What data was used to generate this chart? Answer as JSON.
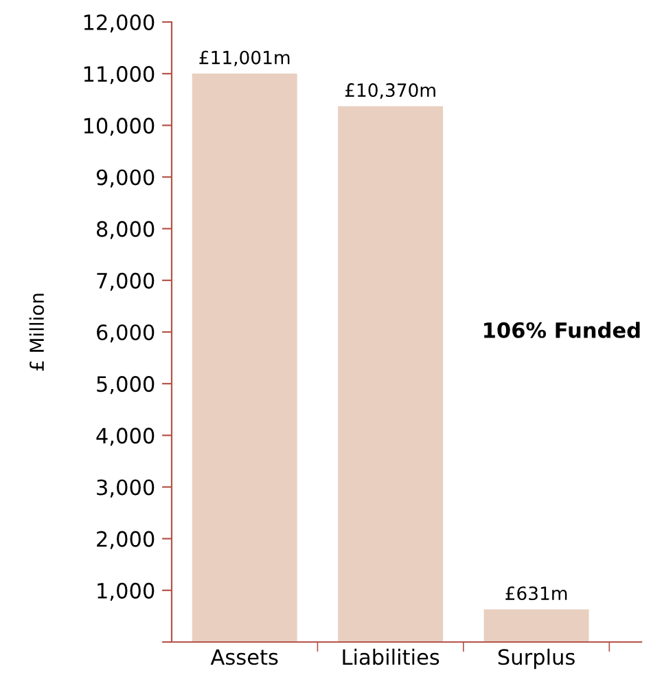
{
  "chart_data": {
    "type": "bar",
    "ylabel": "£ Million",
    "categories": [
      "Assets",
      "Liabilities",
      "Surplus"
    ],
    "values": [
      11001,
      10370,
      631
    ],
    "value_labels": [
      "£11,001m",
      "£10,370m",
      "£631m"
    ],
    "color": "#e8cfc0",
    "ylim": [
      0,
      12000
    ],
    "yticks": [
      {
        "value": 0,
        "label": null
      },
      {
        "value": 1000,
        "label": "1,000"
      },
      {
        "value": 2000,
        "label": "2,000"
      },
      {
        "value": 3000,
        "label": "3,000"
      },
      {
        "value": 4000,
        "label": "4,000"
      },
      {
        "value": 5000,
        "label": "5,000"
      },
      {
        "value": 6000,
        "label": "6,000"
      },
      {
        "value": 7000,
        "label": "7,000"
      },
      {
        "value": 8000,
        "label": "8,000"
      },
      {
        "value": 9000,
        "label": "9,000"
      },
      {
        "value": 10000,
        "label": "10,000"
      },
      {
        "value": 11000,
        "label": "11,000"
      },
      {
        "value": 12000,
        "label": "12,000"
      }
    ],
    "annotations": [
      "106% Funded"
    ],
    "grid": false,
    "legend": false
  }
}
